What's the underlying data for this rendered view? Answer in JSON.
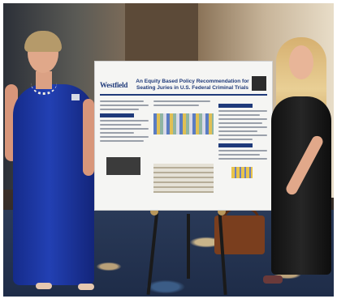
{
  "poster": {
    "logo_text": "Westfield",
    "title": "An Equity Based Policy Recommendation for Seating Juries in U.S. Federal Criminal Trials"
  }
}
